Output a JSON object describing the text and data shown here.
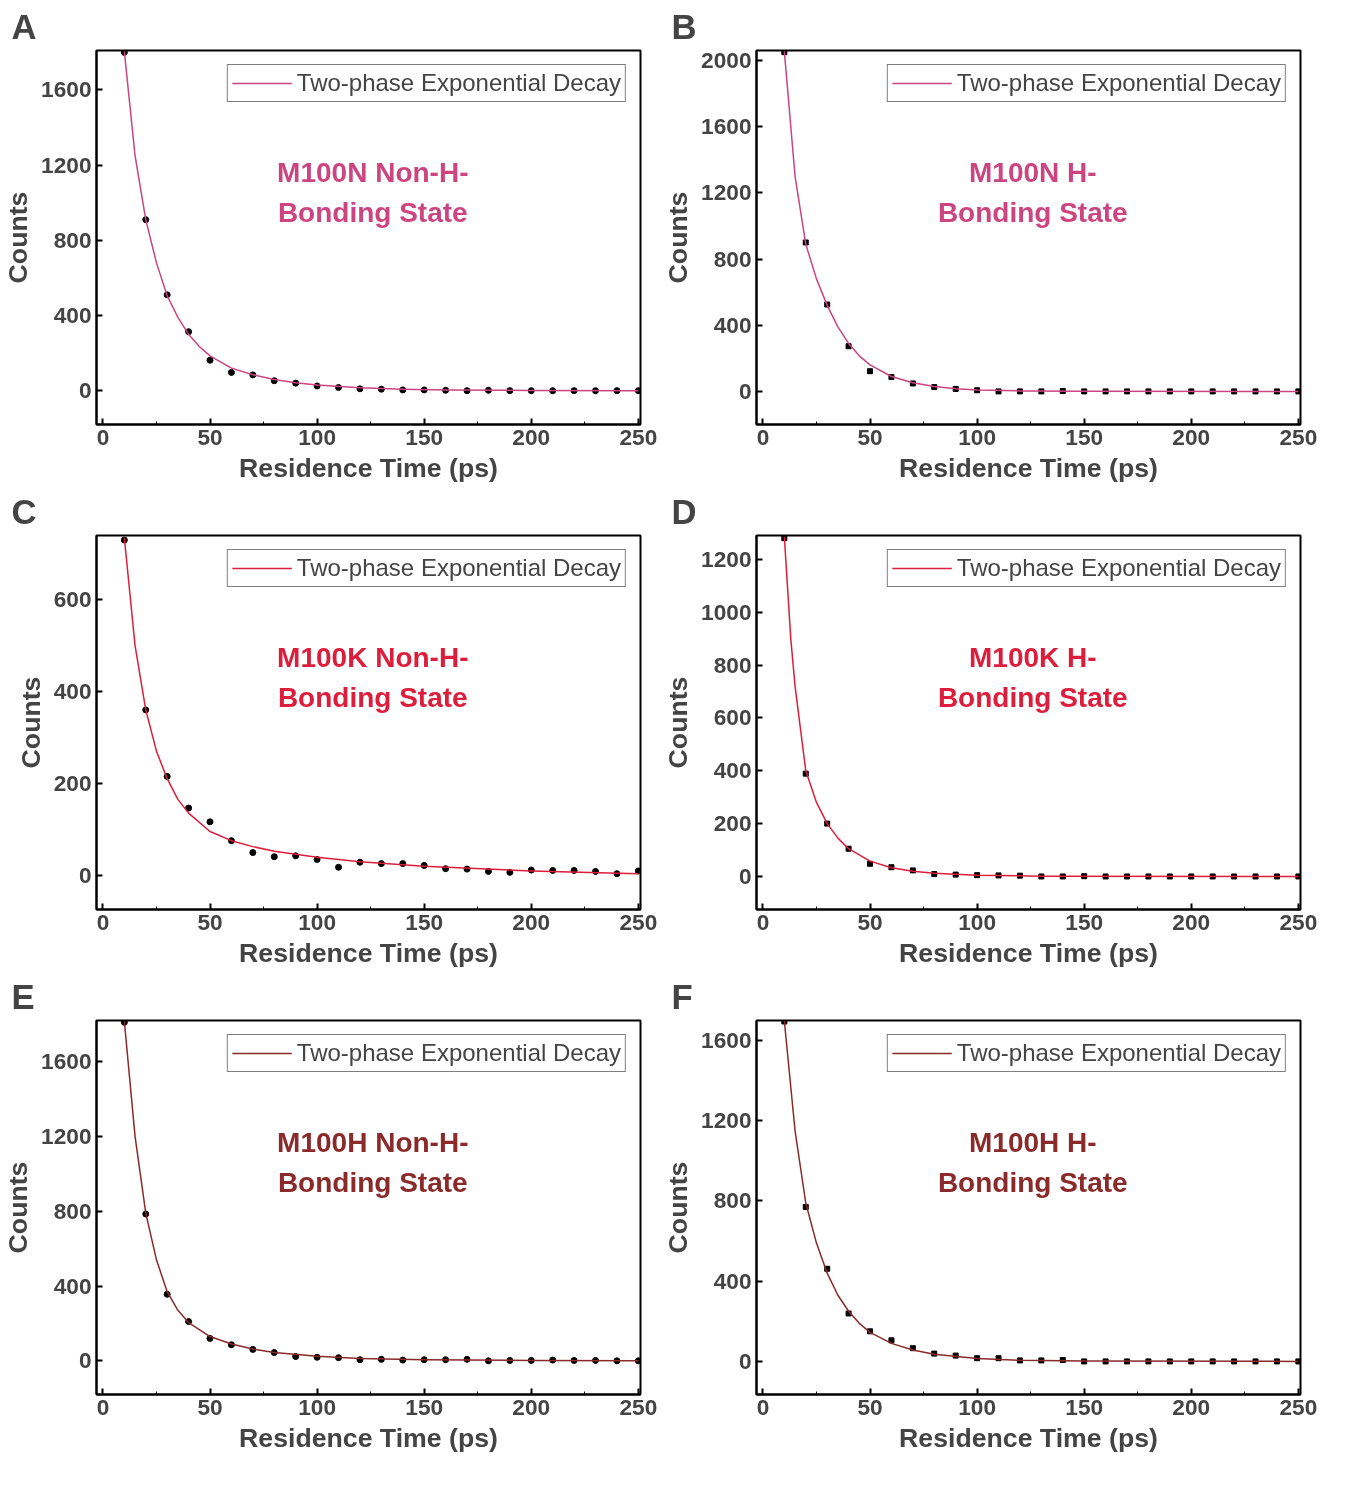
{
  "chart_data": [
    {
      "type": "scatter",
      "title": "A",
      "xlabel": "Residence Time (ps)",
      "ylabel": "Counts",
      "annotations": [
        "M100N Non-H-\nBonding State"
      ],
      "xlim": [
        -3,
        251
      ],
      "ylim": [
        -180,
        1810
      ],
      "xticks": [
        0,
        50,
        100,
        150,
        200,
        250
      ],
      "yticks": [
        0,
        400,
        800,
        1200,
        1600
      ],
      "legend": "top right",
      "grid": false,
      "marker": "circle",
      "x": [
        10,
        20,
        30,
        40,
        50,
        60,
        70,
        80,
        90,
        100,
        110,
        120,
        130,
        140,
        150,
        160,
        170,
        180,
        190,
        200,
        210,
        220,
        230,
        240,
        250
      ],
      "series": [
        {
          "color": "#000000",
          "values": [
            1800,
            910,
            510,
            314,
            162,
            97,
            84,
            53,
            40,
            25,
            17,
            10,
            8,
            4,
            4,
            2,
            0,
            2,
            0,
            0,
            0,
            0,
            0,
            0,
            0
          ]
        },
        {
          "type": "line",
          "name": "Two-phase Exponential Decay",
          "color": "#cc4480",
          "marker": "none",
          "x": [
            10,
            15,
            20,
            25,
            30,
            35,
            40,
            45,
            50,
            60,
            70,
            80,
            90,
            100,
            120,
            140,
            160,
            200,
            250
          ],
          "values": [
            1805,
            1250,
            910,
            680,
            505,
            390,
            300,
            235,
            185,
            120,
            85,
            60,
            42,
            30,
            15,
            8,
            4,
            1,
            0
          ]
        }
      ]
    },
    {
      "type": "scatter",
      "title": "B",
      "xlabel": "Residence Time (ps)",
      "ylabel": "Counts",
      "annotations": [
        "M100N H-\nBonding State"
      ],
      "xlim": [
        -3,
        251
      ],
      "ylim": [
        -200,
        2060
      ],
      "xticks": [
        0,
        50,
        100,
        150,
        200,
        250
      ],
      "yticks": [
        0,
        400,
        800,
        1200,
        1600,
        2000
      ],
      "legend": "top right",
      "grid": false,
      "marker": "square",
      "x": [
        10,
        20,
        30,
        40,
        50,
        60,
        70,
        80,
        90,
        100,
        110,
        120,
        130,
        140,
        150,
        160,
        170,
        180,
        190,
        200,
        210,
        220,
        230,
        240,
        250
      ],
      "series": [
        {
          "color": "#000000",
          "values": [
            2050,
            900,
            525,
            273,
            122,
            87,
            48,
            26,
            15,
            7,
            0,
            0,
            0,
            2,
            0,
            0,
            0,
            0,
            0,
            0,
            0,
            0,
            0,
            0,
            0
          ]
        },
        {
          "type": "line",
          "name": "Two-phase Exponential Decay",
          "color": "#cc4480",
          "marker": "none",
          "x": [
            10,
            15,
            20,
            25,
            30,
            35,
            40,
            45,
            50,
            60,
            70,
            80,
            90,
            100,
            120,
            150,
            250
          ],
          "values": [
            2055,
            1300,
            890,
            680,
            520,
            390,
            290,
            215,
            160,
            90,
            52,
            30,
            16,
            9,
            3,
            1,
            0
          ]
        }
      ]
    },
    {
      "type": "scatter",
      "title": "C",
      "xlabel": "Residence Time (ps)",
      "ylabel": "Counts",
      "annotations": [
        "M100K Non-H-\nBonding State"
      ],
      "xlim": [
        -3,
        251
      ],
      "ylim": [
        -75,
        740
      ],
      "xticks": [
        0,
        50,
        100,
        150,
        200,
        250
      ],
      "yticks": [
        0,
        200,
        400,
        600
      ],
      "legend": "top right",
      "grid": false,
      "marker": "circle",
      "x": [
        10,
        20,
        30,
        40,
        50,
        60,
        70,
        80,
        90,
        100,
        110,
        120,
        130,
        140,
        150,
        160,
        170,
        180,
        190,
        200,
        210,
        220,
        230,
        240,
        250
      ],
      "series": [
        {
          "color": "#000000",
          "values": [
            730,
            360,
            215,
            146,
            116,
            75,
            49,
            40,
            42,
            34,
            17,
            28,
            25,
            25,
            21,
            14,
            13,
            8,
            6,
            11,
            10,
            10,
            8,
            3,
            9
          ]
        },
        {
          "type": "line",
          "name": "Two-phase Exponential Decay",
          "color": "#dc1e3c",
          "marker": "none",
          "x": [
            10,
            15,
            20,
            25,
            30,
            35,
            40,
            50,
            60,
            70,
            80,
            100,
            120,
            150,
            200,
            250
          ],
          "values": [
            735,
            500,
            360,
            270,
            210,
            165,
            135,
            95,
            75,
            62,
            52,
            39,
            29,
            19,
            9,
            3
          ]
        }
      ]
    },
    {
      "type": "scatter",
      "title": "D",
      "xlabel": "Residence Time (ps)",
      "ylabel": "Counts",
      "annotations": [
        "M100K H-\nBonding State"
      ],
      "xlim": [
        -3,
        251
      ],
      "ylim": [
        -125,
        1290
      ],
      "xticks": [
        0,
        50,
        100,
        150,
        200,
        250
      ],
      "yticks": [
        0,
        200,
        400,
        600,
        800,
        1000,
        1200
      ],
      "legend": "top right",
      "grid": false,
      "marker": "square",
      "x": [
        10,
        20,
        30,
        40,
        50,
        60,
        70,
        80,
        90,
        100,
        110,
        120,
        130,
        140,
        150,
        160,
        170,
        180,
        190,
        200,
        210,
        220,
        230,
        240,
        250
      ],
      "series": [
        {
          "color": "#000000",
          "values": [
            1280,
            389,
            200,
            105,
            48,
            35,
            23,
            9,
            7,
            5,
            4,
            3,
            0,
            0,
            1,
            0,
            0,
            0,
            0,
            0,
            0,
            0,
            0,
            0,
            0
          ]
        },
        {
          "type": "line",
          "name": "Two-phase Exponential Decay",
          "color": "#dc1e3c",
          "marker": "none",
          "x": [
            10,
            13,
            15,
            20,
            25,
            30,
            35,
            40,
            50,
            60,
            70,
            80,
            100,
            130,
            250
          ],
          "values": [
            1285,
            900,
            720,
            400,
            280,
            200,
            145,
            105,
            58,
            33,
            20,
            12,
            5,
            1,
            0
          ]
        }
      ]
    },
    {
      "type": "scatter",
      "title": "E",
      "xlabel": "Residence Time (ps)",
      "ylabel": "Counts",
      "annotations": [
        "M100H Non-H-\nBonding State"
      ],
      "xlim": [
        -3,
        251
      ],
      "ylim": [
        -180,
        1820
      ],
      "xticks": [
        0,
        50,
        100,
        150,
        200,
        250
      ],
      "yticks": [
        0,
        400,
        800,
        1200,
        1600
      ],
      "legend": "top right",
      "grid": false,
      "marker": "circle",
      "x": [
        10,
        20,
        30,
        40,
        50,
        60,
        70,
        80,
        90,
        100,
        110,
        120,
        130,
        140,
        150,
        160,
        170,
        180,
        190,
        200,
        210,
        220,
        230,
        240,
        250
      ],
      "series": [
        {
          "color": "#000000",
          "values": [
            1810,
            785,
            356,
            210,
            120,
            86,
            61,
            44,
            23,
            19,
            17,
            6,
            8,
            4,
            6,
            6,
            8,
            0,
            2,
            2,
            4,
            2,
            2,
            0,
            0
          ]
        },
        {
          "type": "line",
          "name": "Two-phase Exponential Decay",
          "color": "#8b2a2a",
          "marker": "none",
          "x": [
            10,
            15,
            20,
            25,
            30,
            35,
            40,
            50,
            60,
            70,
            80,
            100,
            120,
            150,
            200,
            250
          ],
          "values": [
            1815,
            1200,
            790,
            540,
            370,
            270,
            205,
            130,
            90,
            63,
            45,
            24,
            13,
            6,
            2,
            0
          ]
        }
      ]
    },
    {
      "type": "scatter",
      "title": "F",
      "xlabel": "Residence Time (ps)",
      "ylabel": "Counts",
      "annotations": [
        "M100H H-\nBonding State"
      ],
      "xlim": [
        -3,
        251
      ],
      "ylim": [
        -165,
        1700
      ],
      "xticks": [
        0,
        50,
        100,
        150,
        200,
        250
      ],
      "yticks": [
        0,
        400,
        800,
        1200,
        1600
      ],
      "legend": "top right",
      "grid": false,
      "marker": "square",
      "x": [
        10,
        20,
        30,
        40,
        50,
        60,
        70,
        80,
        90,
        100,
        110,
        120,
        130,
        140,
        150,
        160,
        170,
        180,
        190,
        200,
        210,
        220,
        230,
        240,
        250
      ],
      "series": [
        {
          "color": "#000000",
          "values": [
            1695,
            770,
            462,
            239,
            150,
            105,
            66,
            39,
            29,
            16,
            16,
            5,
            5,
            7,
            0,
            0,
            0,
            0,
            0,
            0,
            0,
            0,
            0,
            0,
            0
          ]
        },
        {
          "type": "line",
          "name": "Two-phase Exponential Decay",
          "color": "#8b2a2a",
          "marker": "none",
          "x": [
            10,
            15,
            20,
            25,
            30,
            35,
            40,
            45,
            50,
            60,
            70,
            80,
            100,
            120,
            150,
            250
          ],
          "values": [
            1698,
            1150,
            790,
            590,
            440,
            330,
            250,
            190,
            145,
            90,
            57,
            36,
            15,
            6,
            2,
            0
          ]
        }
      ]
    }
  ]
}
